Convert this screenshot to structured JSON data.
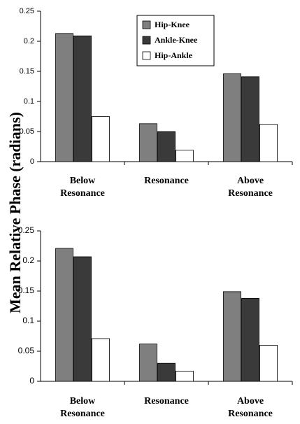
{
  "figure": {
    "ylabel": "Mean Relative Phase (radians)"
  },
  "legend": {
    "items": [
      {
        "label": "Hip-Knee",
        "color": "#7f7f7f"
      },
      {
        "label": "Ankle-Knee",
        "color": "#3a3a3a"
      },
      {
        "label": "Hip-Ankle",
        "color": "#ffffff"
      }
    ]
  },
  "chart_data": [
    {
      "type": "bar",
      "categories": [
        "Below\nResonance",
        "Resonance",
        "Above\nResonance"
      ],
      "series": [
        {
          "name": "Hip-Knee",
          "values": [
            0.213,
            0.063,
            0.146
          ]
        },
        {
          "name": "Ankle-Knee",
          "values": [
            0.209,
            0.05,
            0.141
          ]
        },
        {
          "name": "Hip-Ankle",
          "values": [
            0.075,
            0.019,
            0.062
          ]
        }
      ],
      "ylim": [
        0,
        0.25
      ],
      "yticks": [
        "0",
        "0.05",
        "0.1",
        "0.15",
        "0.2",
        "0.25"
      ],
      "grid": false,
      "legend_position": "top-center"
    },
    {
      "type": "bar",
      "categories": [
        "Below\nResonance",
        "Resonance",
        "Above\nResonance"
      ],
      "series": [
        {
          "name": "Hip-Knee",
          "values": [
            0.221,
            0.062,
            0.149
          ]
        },
        {
          "name": "Ankle-Knee",
          "values": [
            0.207,
            0.03,
            0.138
          ]
        },
        {
          "name": "Hip-Ankle",
          "values": [
            0.071,
            0.017,
            0.06
          ]
        }
      ],
      "ylim": [
        0,
        0.25
      ],
      "yticks": [
        "0",
        "0.05",
        "0.1",
        "0.15",
        "0.2",
        "0.25"
      ],
      "grid": false,
      "legend_position": "none"
    }
  ]
}
